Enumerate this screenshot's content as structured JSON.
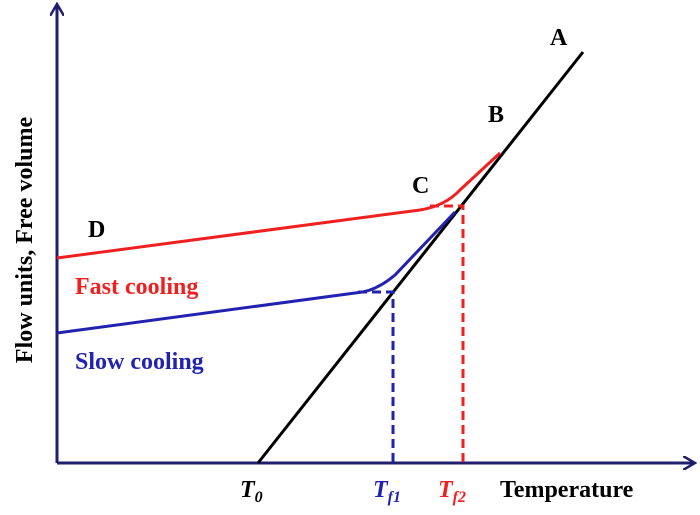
{
  "axes": {
    "y_label": "Flow units, Free volume",
    "x_label": "Temperature"
  },
  "points": {
    "a": "A",
    "b": "B",
    "c": "C",
    "d": "D"
  },
  "curves": {
    "fast": "Fast cooling",
    "slow": "Slow cooling"
  },
  "temperatures": [
    {
      "base": "T",
      "sub": "0"
    },
    {
      "base": "T",
      "sub": "f1"
    },
    {
      "base": "T",
      "sub": "f2"
    }
  ]
}
